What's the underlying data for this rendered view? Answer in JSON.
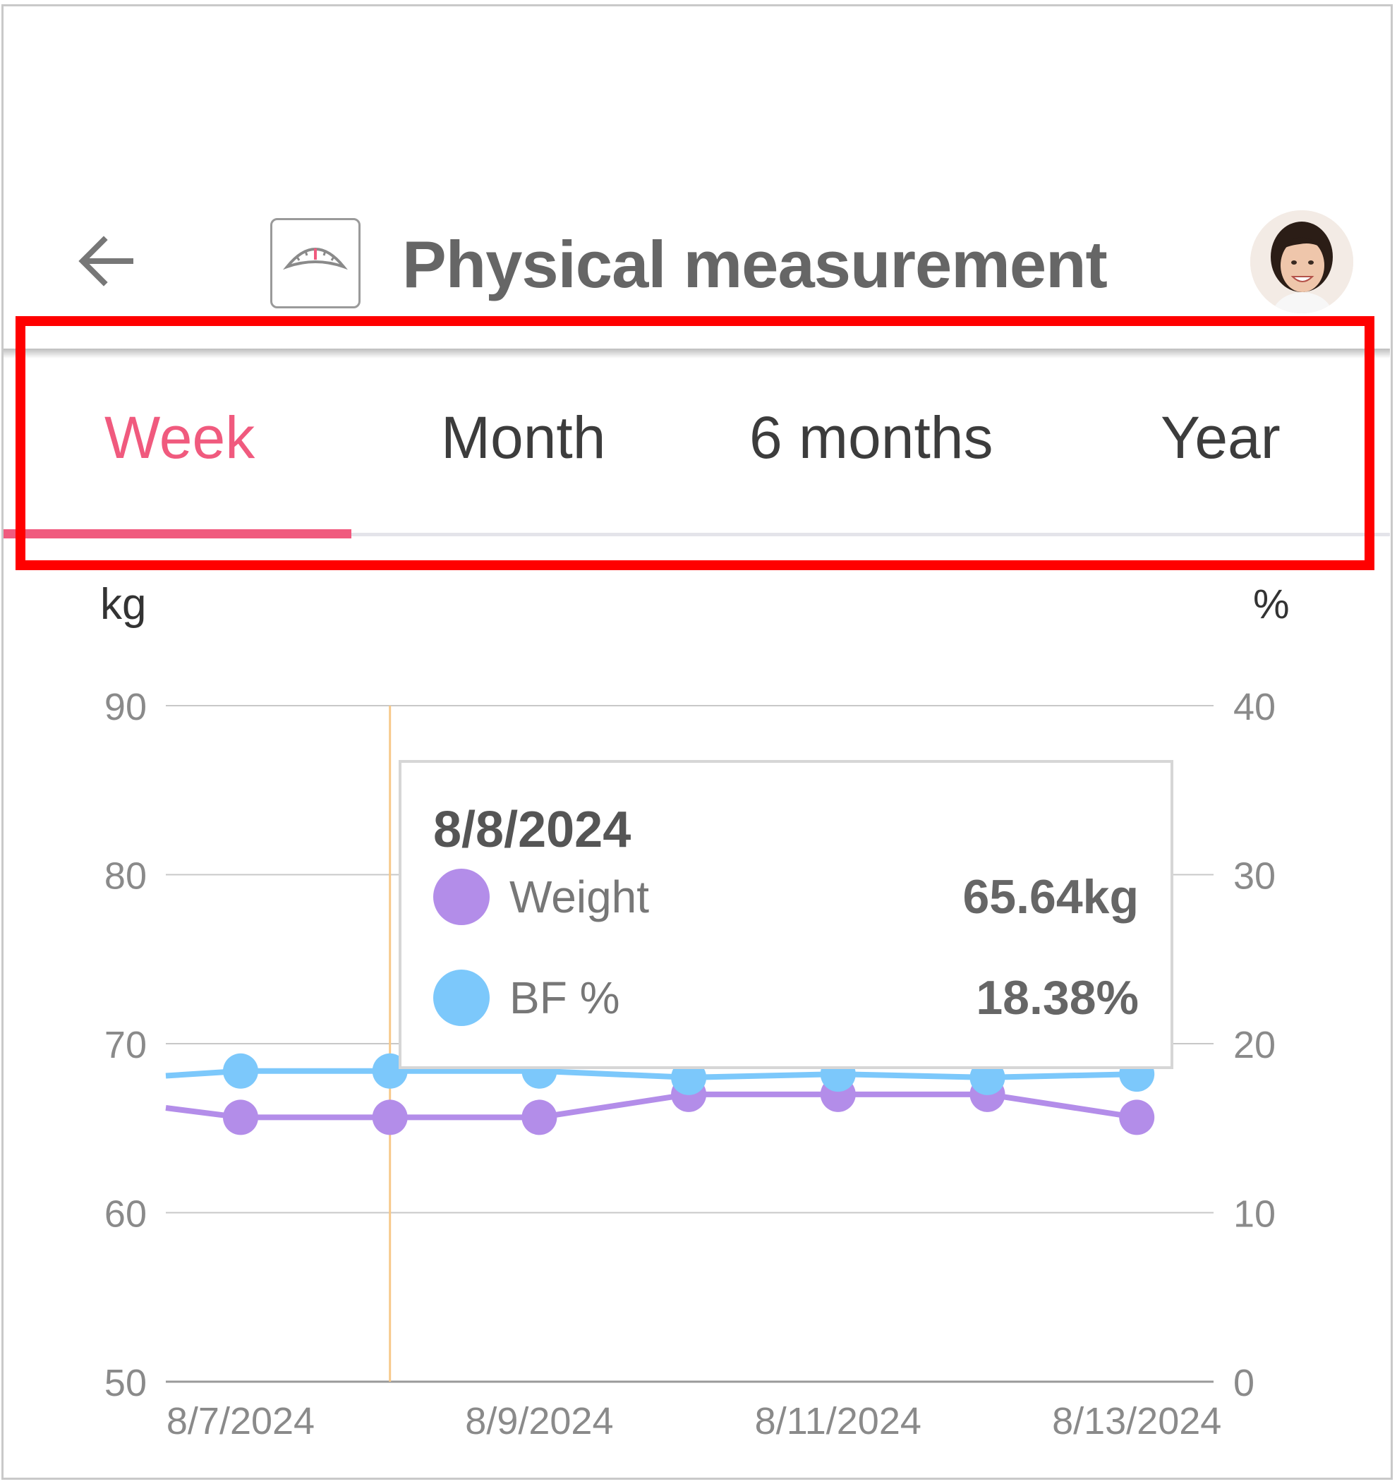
{
  "header": {
    "back_icon": "arrow-left-icon",
    "app_icon": "scale-icon",
    "title": "Physical measurement",
    "avatar_icon": "user-avatar"
  },
  "tabs": [
    {
      "label": "Week",
      "active": true
    },
    {
      "label": "Month",
      "active": false
    },
    {
      "label": "6 months",
      "active": false
    },
    {
      "label": "Year",
      "active": false
    }
  ],
  "colors": {
    "accent": "#f05a7e",
    "weight": "#b38de9",
    "bf": "#7cc8fb",
    "highlight_box": "#ff0000",
    "cursor_line": "#f7c98a"
  },
  "chart_data": {
    "type": "line",
    "y_left_unit": "kg",
    "y_right_unit": "%",
    "y_left_range": [
      50,
      90
    ],
    "y_left_ticks": [
      "90",
      "80",
      "70",
      "60",
      "50"
    ],
    "y_right_range": [
      0,
      40
    ],
    "y_right_ticks": [
      "40",
      "30",
      "20",
      "10",
      "0"
    ],
    "x_tick_labels": [
      "8/7/2024",
      "8/9/2024",
      "8/11/2024",
      "8/13/2024"
    ],
    "x": [
      "8/7/2024",
      "8/8/2024",
      "8/9/2024",
      "8/10/2024",
      "8/11/2024",
      "8/12/2024",
      "8/13/2024"
    ],
    "series": [
      {
        "name": "Weight",
        "axis": "left",
        "values": [
          65.64,
          65.64,
          65.64,
          67.0,
          67.0,
          67.0,
          65.64
        ],
        "offscreen_left": 66.2
      },
      {
        "name": "BF %",
        "axis": "right",
        "values": [
          18.38,
          18.38,
          18.38,
          18.0,
          18.2,
          18.0,
          18.2
        ],
        "offscreen_left": 18.1
      }
    ],
    "grid": true,
    "selected_x": "8/8/2024"
  },
  "tooltip": {
    "date": "8/8/2024",
    "rows": [
      {
        "label": "Weight",
        "value": "65.64kg"
      },
      {
        "label": "BF %",
        "value": "18.38%"
      }
    ]
  }
}
